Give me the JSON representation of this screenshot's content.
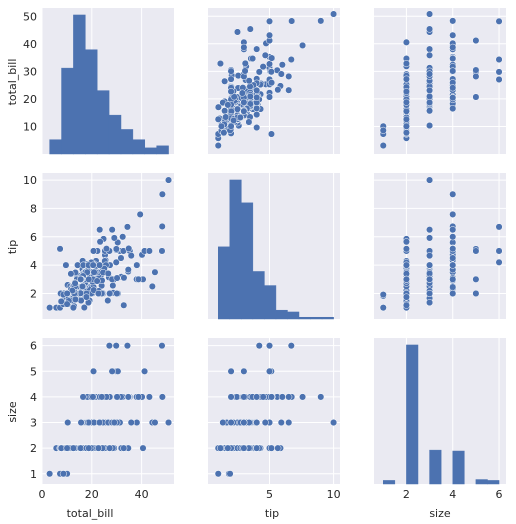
{
  "figure": {
    "type": "pairplot",
    "background": "#ffffff",
    "panel_background": "#EAEAF2",
    "grid_color": "#ffffff",
    "marker_color": "#4C72B0",
    "marker_edge_color": "#ffffff"
  },
  "chart_data": {
    "type": "scatter",
    "variables": [
      "total_bill",
      "tip",
      "size"
    ],
    "grid": true,
    "axes": {
      "total_bill": {
        "label": "total_bill",
        "lim": [
          0,
          53
        ],
        "ticks": [
          0,
          20,
          40
        ],
        "ticks_y": [
          10,
          20,
          30,
          40,
          50
        ]
      },
      "tip": {
        "label": "tip",
        "lim": [
          0.2,
          10.5
        ],
        "ticks": [
          5,
          10
        ],
        "ticks_y": [
          2,
          4,
          6,
          8,
          10
        ]
      },
      "size": {
        "label": "size",
        "lim": [
          0.6,
          6.3
        ],
        "ticks": [
          2,
          4,
          6
        ],
        "ticks_y": [
          1,
          2,
          3,
          4,
          5,
          6
        ]
      }
    },
    "points": {
      "total_bill": [
        16.99,
        10.34,
        21.01,
        23.68,
        24.59,
        25.29,
        8.77,
        26.88,
        15.04,
        14.78,
        10.27,
        35.26,
        15.42,
        18.43,
        14.83,
        21.58,
        10.33,
        16.29,
        16.97,
        20.65,
        17.92,
        20.29,
        15.77,
        39.42,
        19.82,
        17.81,
        13.37,
        12.69,
        21.7,
        19.65,
        9.55,
        18.35,
        15.06,
        20.69,
        17.78,
        24.06,
        16.31,
        16.93,
        18.69,
        31.27,
        16.04,
        17.46,
        13.94,
        9.68,
        30.4,
        18.29,
        22.23,
        32.4,
        28.55,
        18.04,
        12.54,
        10.29,
        34.81,
        9.94,
        25.56,
        19.49,
        38.01,
        26.41,
        11.24,
        48.27,
        20.29,
        13.81,
        11.02,
        18.29,
        17.59,
        20.08,
        16.45,
        3.07,
        20.23,
        15.01,
        12.02,
        17.07,
        26.86,
        25.28,
        14.73,
        10.51,
        17.92,
        27.2,
        22.76,
        17.29,
        19.44,
        16.66,
        10.07,
        32.68,
        15.98,
        34.83,
        13.03,
        18.28,
        24.71,
        21.16,
        28.97,
        22.49,
        5.75,
        16.32,
        22.75,
        40.17,
        27.28,
        12.03,
        21.01,
        12.46,
        11.35,
        15.38,
        44.3,
        22.42,
        20.92,
        15.36,
        20.49,
        25.21,
        18.24,
        14.31,
        14.0,
        7.25,
        38.07,
        23.95,
        25.71,
        17.31,
        29.93,
        10.65,
        12.43,
        24.08,
        11.69,
        13.42,
        14.26,
        15.95,
        12.48,
        29.8,
        8.52,
        14.52,
        11.38,
        22.82,
        19.08,
        20.27,
        11.17,
        12.26,
        18.26,
        8.51,
        10.33,
        14.15,
        16.0,
        13.16,
        17.47,
        34.3,
        41.19,
        27.05,
        16.43,
        8.35,
        18.64,
        11.87,
        9.78,
        7.51,
        14.07,
        13.13,
        17.26,
        24.55,
        19.77,
        29.85,
        48.17,
        25.0,
        13.39,
        16.49,
        21.5,
        12.66,
        16.21,
        13.81,
        17.51,
        24.52,
        20.76,
        31.71,
        10.59,
        10.63,
        50.81,
        15.81,
        7.25,
        31.85,
        16.82,
        32.9,
        17.89,
        14.48,
        9.6,
        34.63,
        34.65,
        23.33,
        45.35,
        23.17,
        40.55,
        20.69,
        20.9,
        30.46,
        18.15,
        23.1,
        15.69,
        19.81,
        28.44,
        15.48,
        16.58,
        7.56,
        10.34,
        43.11,
        13.0,
        13.51,
        18.71,
        12.74,
        13.0,
        16.4,
        20.53,
        16.47,
        26.59,
        38.73,
        24.27,
        12.76,
        30.06,
        25.89,
        48.33,
        13.27,
        28.17,
        12.9,
        28.15,
        11.59,
        7.74,
        30.14,
        12.16,
        13.42,
        8.58,
        15.98,
        13.42,
        16.27,
        10.09,
        20.45,
        13.28,
        22.12,
        24.01,
        15.69,
        11.61,
        10.77,
        15.53,
        10.07,
        12.6,
        32.83,
        35.83,
        29.03,
        27.18,
        22.67,
        17.82,
        18.78
      ],
      "tip": [
        1.01,
        1.66,
        3.5,
        3.31,
        3.61,
        4.71,
        2.0,
        3.12,
        1.96,
        3.23,
        1.71,
        5.0,
        1.57,
        3.0,
        3.02,
        3.92,
        1.67,
        3.71,
        3.5,
        3.35,
        4.08,
        2.75,
        2.23,
        7.58,
        3.18,
        2.34,
        2.0,
        2.0,
        4.3,
        3.0,
        1.45,
        2.5,
        3.0,
        2.45,
        3.27,
        3.6,
        2.0,
        3.07,
        2.31,
        5.0,
        2.24,
        2.54,
        3.06,
        1.32,
        5.6,
        3.0,
        5.0,
        6.0,
        2.05,
        3.0,
        2.5,
        2.6,
        5.2,
        1.56,
        4.34,
        3.51,
        3.0,
        1.5,
        1.76,
        6.73,
        3.21,
        2.0,
        1.98,
        3.76,
        2.64,
        3.15,
        2.47,
        1.0,
        2.01,
        2.09,
        1.97,
        3.0,
        3.14,
        5.0,
        2.2,
        1.25,
        3.08,
        4.0,
        3.0,
        2.71,
        3.0,
        3.4,
        1.83,
        5.0,
        2.03,
        5.17,
        2.0,
        4.0,
        5.85,
        3.0,
        3.0,
        3.5,
        1.0,
        4.3,
        3.25,
        4.73,
        4.0,
        1.5,
        3.0,
        1.5,
        2.5,
        3.0,
        2.5,
        3.48,
        4.08,
        1.64,
        4.06,
        4.29,
        3.76,
        4.0,
        3.0,
        1.0,
        4.0,
        2.55,
        4.0,
        3.5,
        5.07,
        1.5,
        1.8,
        2.92,
        2.31,
        1.68,
        2.5,
        2.0,
        2.52,
        4.2,
        1.48,
        2.0,
        2.0,
        2.18,
        1.5,
        2.83,
        1.5,
        2.0,
        3.25,
        1.25,
        2.0,
        2.0,
        2.0,
        2.75,
        3.5,
        6.7,
        5.0,
        5.0,
        2.3,
        1.5,
        1.36,
        1.63,
        1.73,
        2.0,
        2.5,
        2.0,
        2.74,
        2.0,
        2.0,
        5.14,
        5.0,
        3.75,
        2.61,
        2.0,
        3.5,
        2.5,
        2.0,
        2.0,
        3.0,
        3.48,
        2.24,
        4.5,
        1.61,
        2.0,
        10.0,
        3.16,
        5.15,
        3.18,
        4.0,
        3.11,
        2.0,
        2.0,
        4.0,
        3.55,
        3.68,
        5.65,
        3.5,
        6.5,
        3.0,
        5.0,
        3.5,
        2.0,
        3.5,
        4.0,
        1.5,
        4.19,
        2.56,
        2.02,
        4.0,
        1.44,
        2.0,
        5.0,
        2.0,
        2.0,
        4.0,
        2.01,
        2.0,
        2.5,
        4.0,
        3.23,
        3.41,
        3.0,
        2.03,
        2.23,
        2.0,
        5.16,
        9.0,
        2.5,
        6.5,
        1.1,
        3.0,
        1.5,
        1.44,
        3.09,
        2.2,
        3.48,
        1.92,
        3.0,
        1.58,
        2.5,
        2.0,
        3.0,
        2.72,
        2.88,
        2.0,
        3.0,
        3.39,
        1.47,
        3.0,
        1.25,
        1.0,
        1.17,
        4.67,
        5.92,
        2.0,
        2.0,
        1.75,
        3.0
      ],
      "size": [
        2,
        3,
        3,
        2,
        4,
        4,
        2,
        4,
        2,
        2,
        2,
        4,
        2,
        4,
        2,
        2,
        3,
        3,
        3,
        3,
        2,
        2,
        2,
        4,
        2,
        4,
        2,
        2,
        2,
        2,
        2,
        4,
        2,
        4,
        2,
        3,
        3,
        3,
        3,
        3,
        3,
        2,
        2,
        2,
        4,
        2,
        2,
        4,
        3,
        2,
        2,
        2,
        4,
        2,
        4,
        2,
        4,
        2,
        2,
        4,
        2,
        2,
        2,
        4,
        3,
        3,
        2,
        1,
        2,
        2,
        2,
        3,
        2,
        2,
        2,
        2,
        2,
        4,
        2,
        2,
        2,
        2,
        1,
        2,
        2,
        4,
        2,
        2,
        2,
        2,
        2,
        2,
        2,
        2,
        2,
        4,
        2,
        2,
        2,
        2,
        2,
        2,
        3,
        2,
        2,
        2,
        2,
        2,
        2,
        2,
        2,
        1,
        3,
        2,
        3,
        2,
        4,
        2,
        2,
        4,
        2,
        2,
        2,
        2,
        2,
        6,
        2,
        2,
        2,
        3,
        2,
        2,
        2,
        2,
        2,
        2,
        2,
        2,
        2,
        2,
        2,
        6,
        5,
        6,
        2,
        2,
        3,
        2,
        2,
        2,
        2,
        2,
        3,
        4,
        4,
        5,
        6,
        4,
        2,
        4,
        4,
        2,
        3,
        2,
        2,
        3,
        2,
        4,
        2,
        2,
        3,
        2,
        2,
        2,
        2,
        2,
        2,
        2,
        2,
        2,
        4,
        2,
        3,
        4,
        2,
        5,
        3,
        5,
        3,
        3,
        2,
        2,
        2,
        2,
        2,
        2,
        2,
        4,
        2,
        2,
        3,
        2,
        2,
        2,
        4,
        3,
        3,
        4,
        2,
        2,
        3,
        4,
        4,
        2,
        3,
        2,
        5,
        2,
        2,
        4,
        2,
        2,
        1,
        3,
        2,
        2,
        2,
        4,
        2,
        2,
        4,
        3,
        2,
        2,
        2,
        2,
        2,
        2,
        3,
        3,
        2,
        2,
        2,
        2
      ]
    },
    "histograms": {
      "total_bill": {
        "bin_edges": [
          3.07,
          7.844,
          12.618,
          17.392,
          22.166,
          26.94,
          31.714,
          36.488,
          41.262,
          46.036,
          50.81
        ],
        "counts": [
          7,
          42,
          68,
          51,
          31,
          19,
          12,
          7,
          3,
          4
        ]
      },
      "tip": {
        "bin_edges": [
          1.0,
          1.9,
          2.8,
          3.7,
          4.6,
          5.5,
          6.4,
          7.3,
          8.2,
          9.1,
          10.0
        ],
        "counts": [
          41,
          79,
          66,
          27,
          19,
          5,
          4,
          1,
          1,
          1
        ]
      },
      "size": {
        "bin_edges": [
          1.0,
          1.5,
          2.0,
          2.5,
          3.0,
          3.5,
          4.0,
          4.5,
          5.0,
          5.5,
          6.0
        ],
        "counts": [
          4,
          0,
          156,
          0,
          38,
          0,
          37,
          0,
          5,
          4
        ]
      }
    }
  }
}
